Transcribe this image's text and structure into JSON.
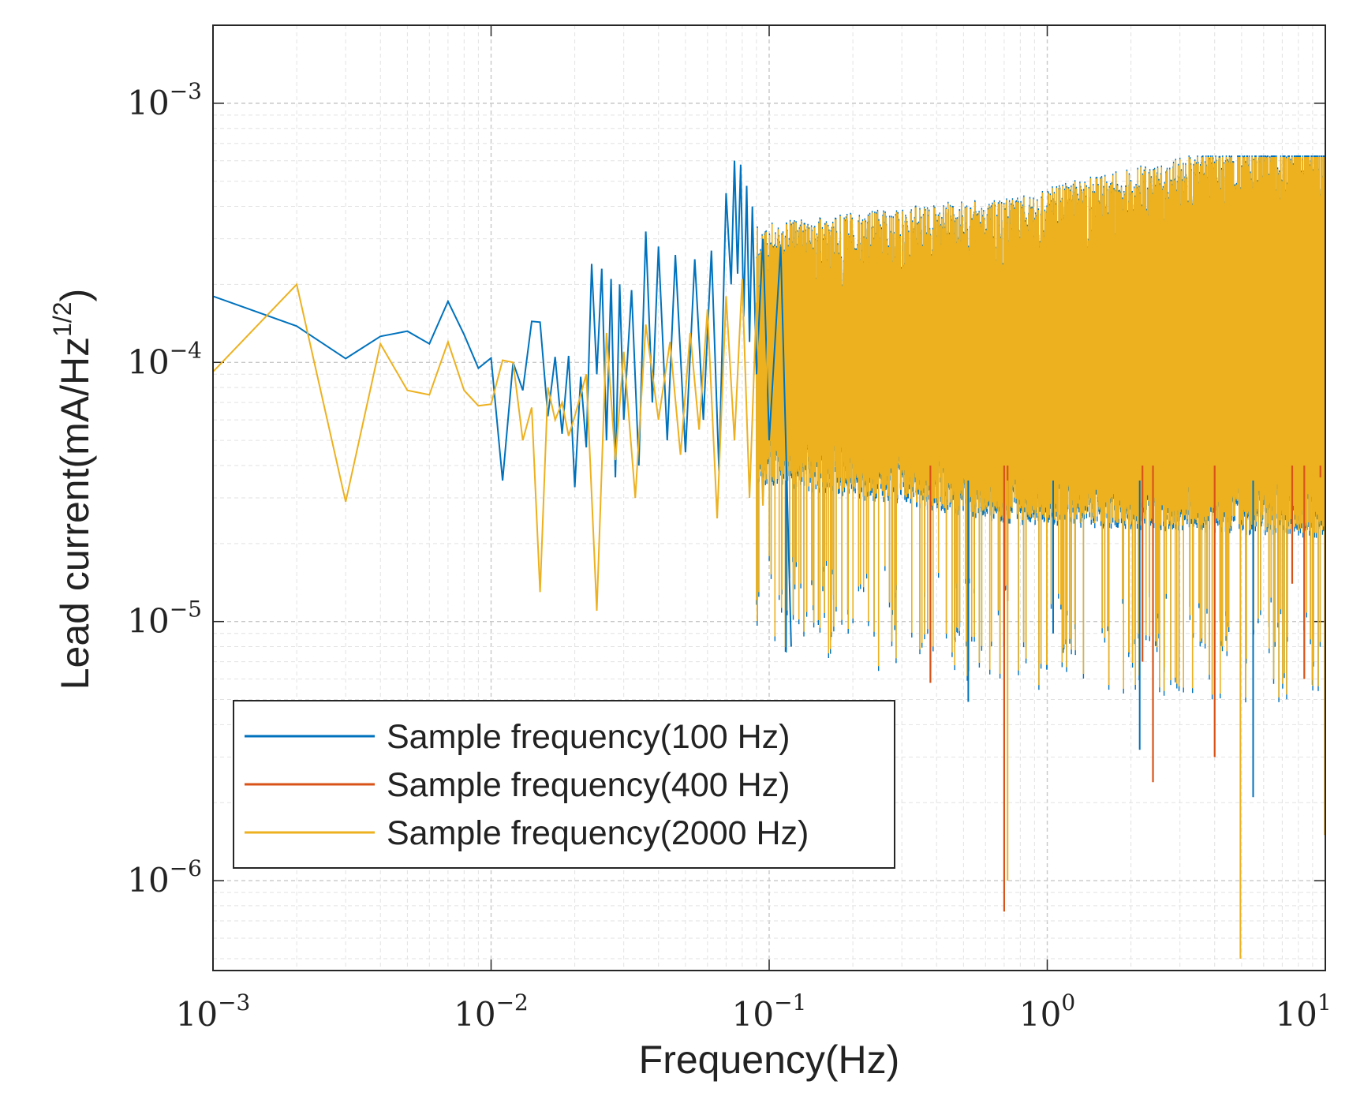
{
  "chart_data": {
    "type": "line",
    "xlabel": "Frequency(Hz)",
    "ylabel_main": "Lead current(mA/Hz",
    "ylabel_sup": "1/2",
    "ylabel_close": ")",
    "x_scale": "log",
    "y_scale": "log",
    "xlim": [
      0.001,
      10
    ],
    "ylim": [
      4.5e-07,
      0.002
    ],
    "grid": true,
    "legend_position": "bottom-left",
    "x_ticks": [
      {
        "base": "10",
        "exp": "−3",
        "value": 0.001
      },
      {
        "base": "10",
        "exp": "−2",
        "value": 0.01
      },
      {
        "base": "10",
        "exp": "−1",
        "value": 0.1
      },
      {
        "base": "10",
        "exp": "0",
        "value": 1
      },
      {
        "base": "10",
        "exp": "1",
        "value": 10
      }
    ],
    "y_ticks": [
      {
        "base": "10",
        "exp": "−6",
        "value": 1e-06
      },
      {
        "base": "10",
        "exp": "−5",
        "value": 1e-05
      },
      {
        "base": "10",
        "exp": "−4",
        "value": 0.0001
      },
      {
        "base": "10",
        "exp": "−3",
        "value": 0.001
      }
    ],
    "series": [
      {
        "name": "Sample frequency(100 Hz)",
        "color": "#0072BD",
        "x": [
          0.001,
          0.002,
          0.003,
          0.004,
          0.005,
          0.006,
          0.007,
          0.008,
          0.009,
          0.01,
          0.011,
          0.012,
          0.013,
          0.014,
          0.015,
          0.016,
          0.017,
          0.018,
          0.019,
          0.02,
          0.021,
          0.022,
          0.023,
          0.024,
          0.025,
          0.026,
          0.027,
          0.028,
          0.029,
          0.03,
          0.032,
          0.034,
          0.036,
          0.038,
          0.04,
          0.043,
          0.046,
          0.05,
          0.054,
          0.058,
          0.062,
          0.066,
          0.07,
          0.073,
          0.075,
          0.077,
          0.079,
          0.081,
          0.083,
          0.085,
          0.087,
          0.09,
          0.095,
          0.1,
          0.11,
          0.12
        ],
        "y": [
          0.00018,
          0.000138,
          0.0001035,
          0.000126,
          0.000132,
          0.000118,
          0.000172,
          0.000128,
          9.5e-05,
          0.000104,
          3.5e-05,
          0.0001,
          7.8e-05,
          0.000144,
          0.000143,
          6.2e-05,
          0.000105,
          5.3e-05,
          0.000106,
          3.3e-05,
          8.8e-05,
          4.7e-05,
          0.00024,
          9e-05,
          0.00023,
          5e-05,
          0.00021,
          3.6e-05,
          0.0002,
          6e-05,
          0.00019,
          4e-05,
          0.00032,
          7e-05,
          0.00028,
          5e-05,
          0.00026,
          4.5e-05,
          0.00025,
          6e-05,
          0.00027,
          3.8e-05,
          0.00045,
          0.0002,
          0.0006,
          0.00022,
          0.00058,
          0.00015,
          0.00048,
          0.00012,
          0.0004,
          9e-05,
          0.0003,
          5e-05,
          0.00028,
          8e-06
        ]
      },
      {
        "name": "Sample frequency(400 Hz)",
        "color": "#D95319",
        "x": [
          0.38,
          0.7,
          0.72,
          2.2,
          2.4,
          4.0,
          7.6,
          8.4,
          9.6
        ],
        "y": [
          5.8e-06,
          7.6e-07,
          1.2e-05,
          7e-06,
          2.4e-06,
          3e-06,
          1.4e-05,
          6e-06,
          3.6e-05
        ]
      },
      {
        "name": "Sample frequency(2000 Hz)",
        "color": "#EDB120",
        "x": [
          0.001,
          0.002,
          0.003,
          0.004,
          0.005,
          0.006,
          0.007,
          0.008,
          0.009,
          0.01,
          0.011,
          0.012,
          0.013,
          0.014,
          0.015,
          0.016,
          0.017,
          0.018,
          0.019,
          0.02,
          0.022,
          0.024,
          0.026,
          0.028,
          0.03,
          0.033,
          0.036,
          0.04,
          0.044,
          0.048,
          0.052,
          0.056,
          0.06,
          0.065,
          0.07,
          0.075,
          0.08,
          0.085,
          0.09,
          0.095,
          0.1
        ],
        "y": [
          9.2e-05,
          0.0002,
          2.9e-05,
          0.000118,
          7.8e-05,
          7.5e-05,
          0.00012,
          7.8e-05,
          6.8e-05,
          6.9e-05,
          0.000102,
          0.0001,
          5e-05,
          6.7e-05,
          1.3e-05,
          8e-05,
          6e-05,
          7e-05,
          5.2e-05,
          6.2e-05,
          9e-05,
          1.1e-05,
          0.00013,
          4.2e-05,
          0.00011,
          3e-05,
          0.00014,
          6e-05,
          0.00012,
          4.4e-05,
          0.00013,
          5.5e-05,
          0.00016,
          2.5e-05,
          0.00018,
          5e-05,
          0.00021,
          3e-05,
          0.00017,
          2.8e-05,
          0.0002
        ]
      }
    ]
  }
}
